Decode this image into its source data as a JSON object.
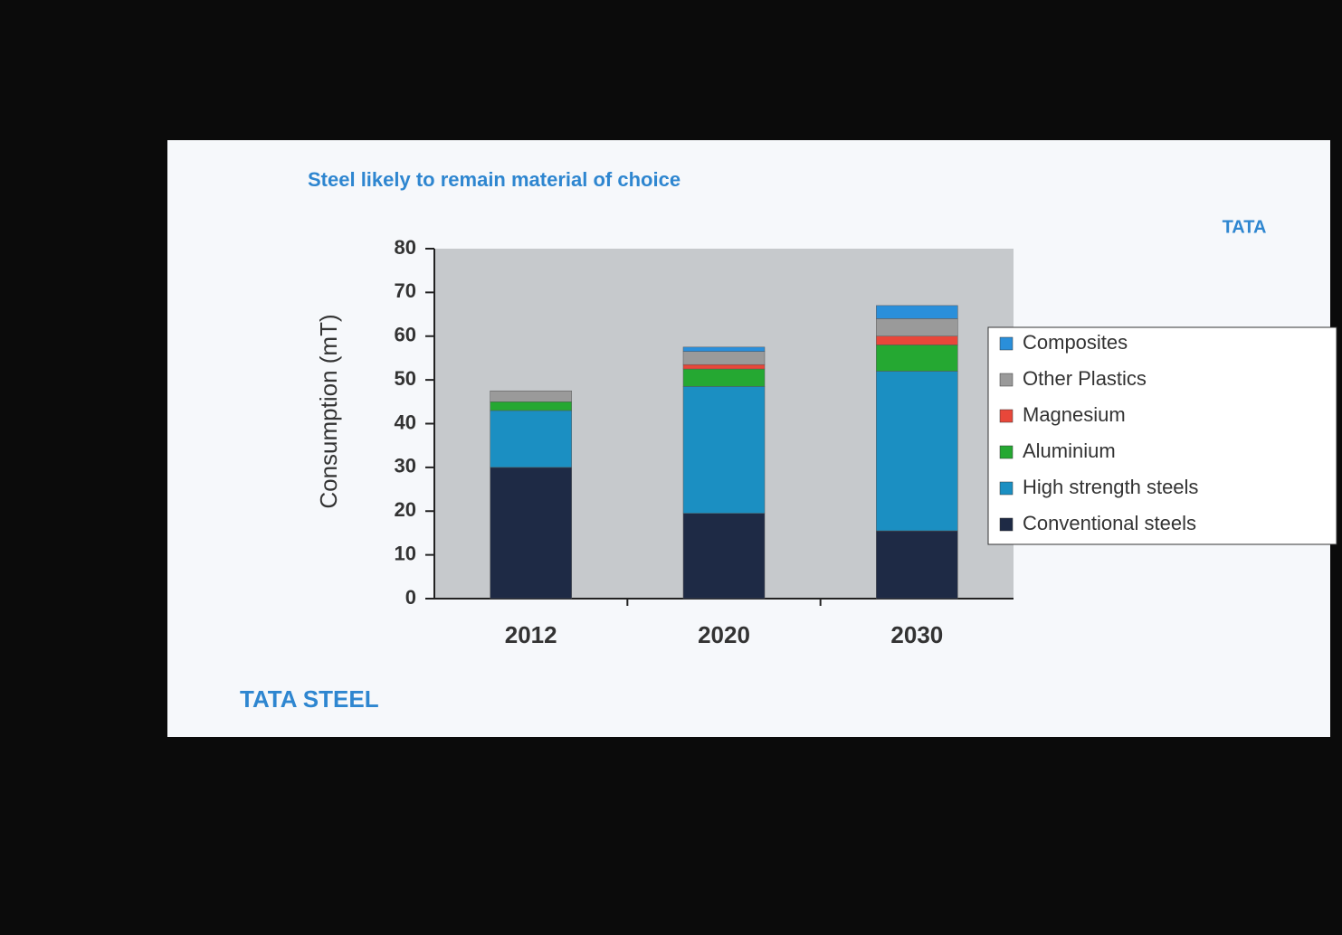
{
  "chart_data": {
    "type": "stacked_bar",
    "title": "Steel likely to remain material of choice",
    "logo": "TATA",
    "footer": "TATA STEEL",
    "y_label": "Consumption (mT)",
    "categories": [
      "2012",
      "2020",
      "2030"
    ],
    "series": [
      {
        "name": "Conventional steels",
        "color": "#1e2a45",
        "values": [
          30,
          19.5,
          15.5
        ]
      },
      {
        "name": "High strength steels",
        "color": "#1b8fc2",
        "values": [
          13,
          29,
          36.5
        ]
      },
      {
        "name": "Aluminium",
        "color": "#25a832",
        "values": [
          2,
          4,
          6
        ]
      },
      {
        "name": "Magnesium",
        "color": "#e8473a",
        "values": [
          0,
          1,
          2
        ]
      },
      {
        "name": "Other Plastics",
        "color": "#9a9a9a",
        "values": [
          2.5,
          3,
          4
        ]
      },
      {
        "name": "Composites",
        "color": "#2a8fda",
        "values": [
          0,
          1,
          3
        ]
      }
    ],
    "ylim": [
      0,
      80
    ],
    "yticks": [
      0,
      10,
      20,
      30,
      40,
      50,
      60,
      70,
      80
    ],
    "legend": "right"
  }
}
